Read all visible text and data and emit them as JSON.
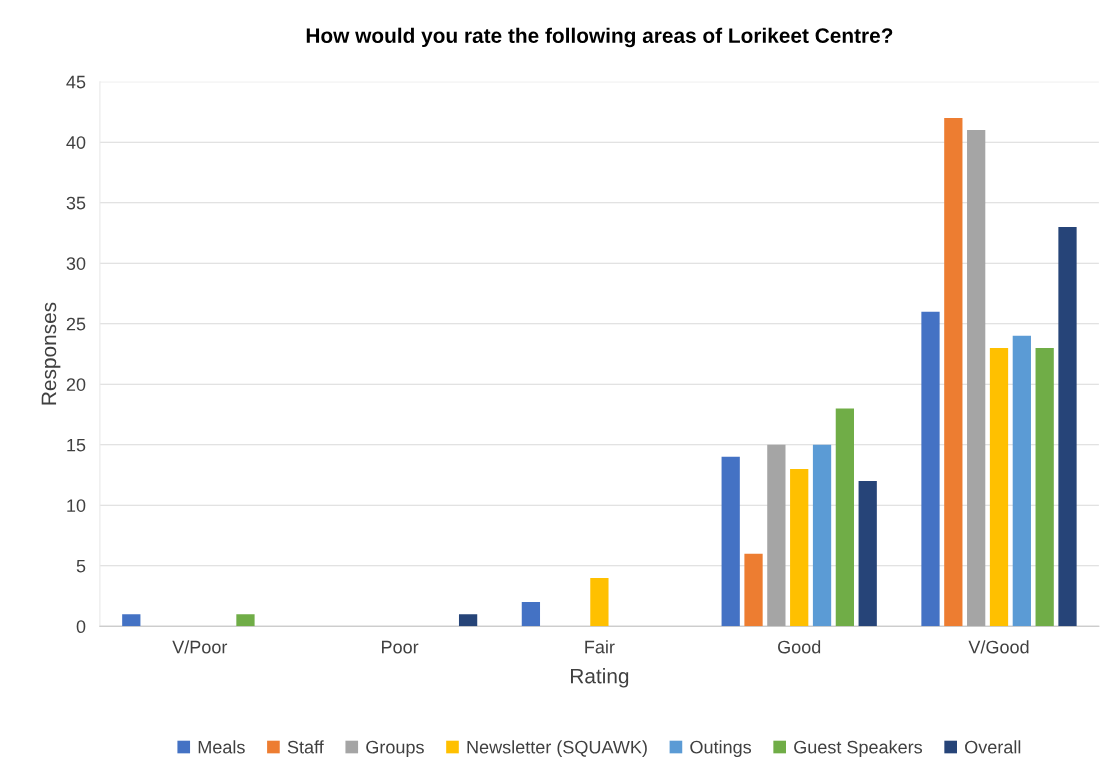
{
  "chart_data": {
    "type": "bar",
    "title": "How would you rate the following areas of Lorikeet Centre?",
    "xlabel": "Rating",
    "ylabel": "Responses",
    "categories": [
      "V/Poor",
      "Poor",
      "Fair",
      "Good",
      "V/Good"
    ],
    "series": [
      {
        "name": "Meals",
        "color": "#4472c4",
        "values": [
          1,
          0,
          2,
          14,
          26
        ]
      },
      {
        "name": "Staff",
        "color": "#ed7d31",
        "values": [
          0,
          0,
          0,
          6,
          42
        ]
      },
      {
        "name": "Groups",
        "color": "#a5a5a5",
        "values": [
          0,
          0,
          0,
          15,
          41
        ]
      },
      {
        "name": "Newsletter (SQUAWK)",
        "color": "#ffc000",
        "values": [
          0,
          0,
          4,
          13,
          23
        ]
      },
      {
        "name": "Outings",
        "color": "#5b9bd5",
        "values": [
          0,
          0,
          0,
          15,
          24
        ]
      },
      {
        "name": "Guest Speakers",
        "color": "#70ad47",
        "values": [
          1,
          0,
          0,
          18,
          23
        ]
      },
      {
        "name": "Overall",
        "color": "#264478",
        "values": [
          0,
          1,
          0,
          12,
          33
        ]
      }
    ],
    "ylim": [
      0,
      45
    ],
    "yticks": [
      0,
      5,
      10,
      15,
      20,
      25,
      30,
      35,
      40,
      45
    ],
    "grid": "y",
    "legend": "bottom"
  }
}
